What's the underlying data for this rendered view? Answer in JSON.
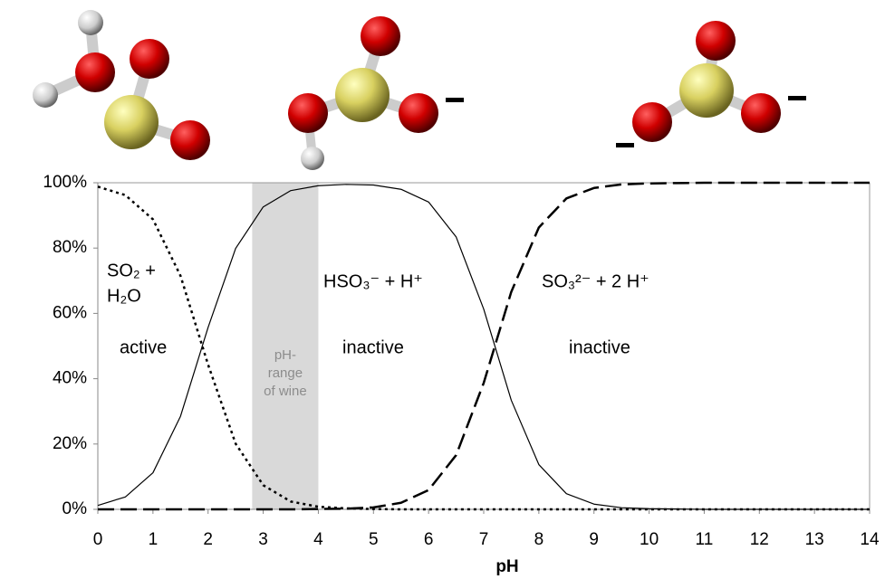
{
  "chart_data": {
    "type": "line",
    "x_label": "pH",
    "x": [
      0,
      0.5,
      1,
      1.5,
      2,
      2.5,
      3,
      3.5,
      4,
      4.5,
      5,
      5.5,
      6,
      6.5,
      7,
      7.5,
      8,
      8.5,
      9,
      9.5,
      10,
      10.5,
      11,
      11.5,
      12,
      12.5,
      13,
      13.5,
      14
    ],
    "series": [
      {
        "color": "#000000",
        "dash": "dotted",
        "values": [
          98.8,
          96.2,
          88.8,
          71.5,
          44.3,
          20.1,
          7.4,
          2.4,
          0.8,
          0.3,
          0.1,
          0,
          0,
          0,
          0,
          0,
          0,
          0,
          0,
          0,
          0,
          0,
          0,
          0,
          0,
          0,
          0,
          0,
          0
        ]
      },
      {
        "color": "#000000",
        "dash": "solid",
        "values": [
          1.2,
          3.8,
          11.2,
          28.5,
          55.7,
          79.9,
          92.6,
          97.6,
          99.1,
          99.5,
          99.3,
          98,
          94.1,
          83.4,
          61.3,
          33.4,
          13.7,
          4.8,
          1.6,
          0.5,
          0.2,
          0.1,
          0,
          0,
          0,
          0,
          0,
          0,
          0
        ]
      },
      {
        "color": "#000000",
        "dash": "dashed",
        "values": [
          0,
          0,
          0,
          0,
          0,
          0,
          0,
          0,
          0.1,
          0.2,
          0.6,
          2,
          5.9,
          16.6,
          38.7,
          66.6,
          86.3,
          95.2,
          98.4,
          99.5,
          99.8,
          99.9,
          100,
          100,
          100,
          100,
          100,
          100,
          100
        ]
      }
    ],
    "xlim": [
      0,
      14
    ],
    "xticks": [
      0,
      1,
      2,
      3,
      4,
      5,
      6,
      7,
      8,
      9,
      10,
      11,
      12,
      13,
      14
    ],
    "ylim": [
      0,
      100
    ],
    "yticks": [
      {
        "value": 0,
        "label": "0%"
      },
      {
        "value": 20,
        "label": "20%"
      },
      {
        "value": 40,
        "label": "40%"
      },
      {
        "value": 60,
        "label": "60%"
      },
      {
        "value": 80,
        "label": "80%"
      },
      {
        "value": 100,
        "label": "100%"
      }
    ],
    "band": {
      "from": 2.8,
      "to": 4,
      "color": "#d9d9d9",
      "label": [
        "pH-",
        "range",
        "of wine"
      ]
    },
    "annotations": [
      "SO₂ +",
      "H₂O",
      "HSO₃⁻ + H⁺",
      "SO₃²⁻ + 2 H⁺",
      "active",
      "inactive",
      "inactive"
    ]
  }
}
